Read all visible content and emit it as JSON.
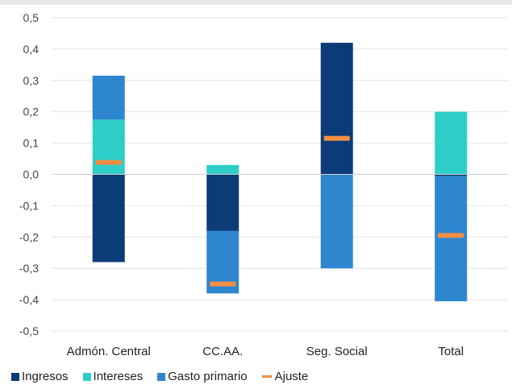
{
  "chart_data": {
    "type": "bar",
    "stacked": true,
    "categories": [
      "Admón. Central",
      "CC.AA.",
      "Seg. Social",
      "Total"
    ],
    "ylim": [
      -0.5,
      0.5
    ],
    "yticks": [
      "0,5",
      "0,4",
      "0,3",
      "0,2",
      "0,1",
      "0,0",
      "-0,1",
      "-0,2",
      "-0,3",
      "-0,4",
      "-0,5"
    ],
    "grid": true,
    "legend_position": "bottom",
    "series": [
      {
        "name": "Ingresos",
        "color": "#0b3c78",
        "values": [
          -0.28,
          -0.18,
          0.42,
          -0.005
        ]
      },
      {
        "name": "Intereses",
        "color": "#2ecec8",
        "values": [
          0.175,
          0.03,
          0.0,
          0.2
        ]
      },
      {
        "name": "Gasto primario",
        "color": "#2e86cf",
        "values": [
          0.14,
          -0.2,
          -0.3,
          -0.4
        ]
      }
    ],
    "markers": {
      "name": "Ajuste",
      "color": "#f28e42",
      "values": [
        0.038,
        -0.35,
        0.115,
        -0.195
      ]
    }
  }
}
